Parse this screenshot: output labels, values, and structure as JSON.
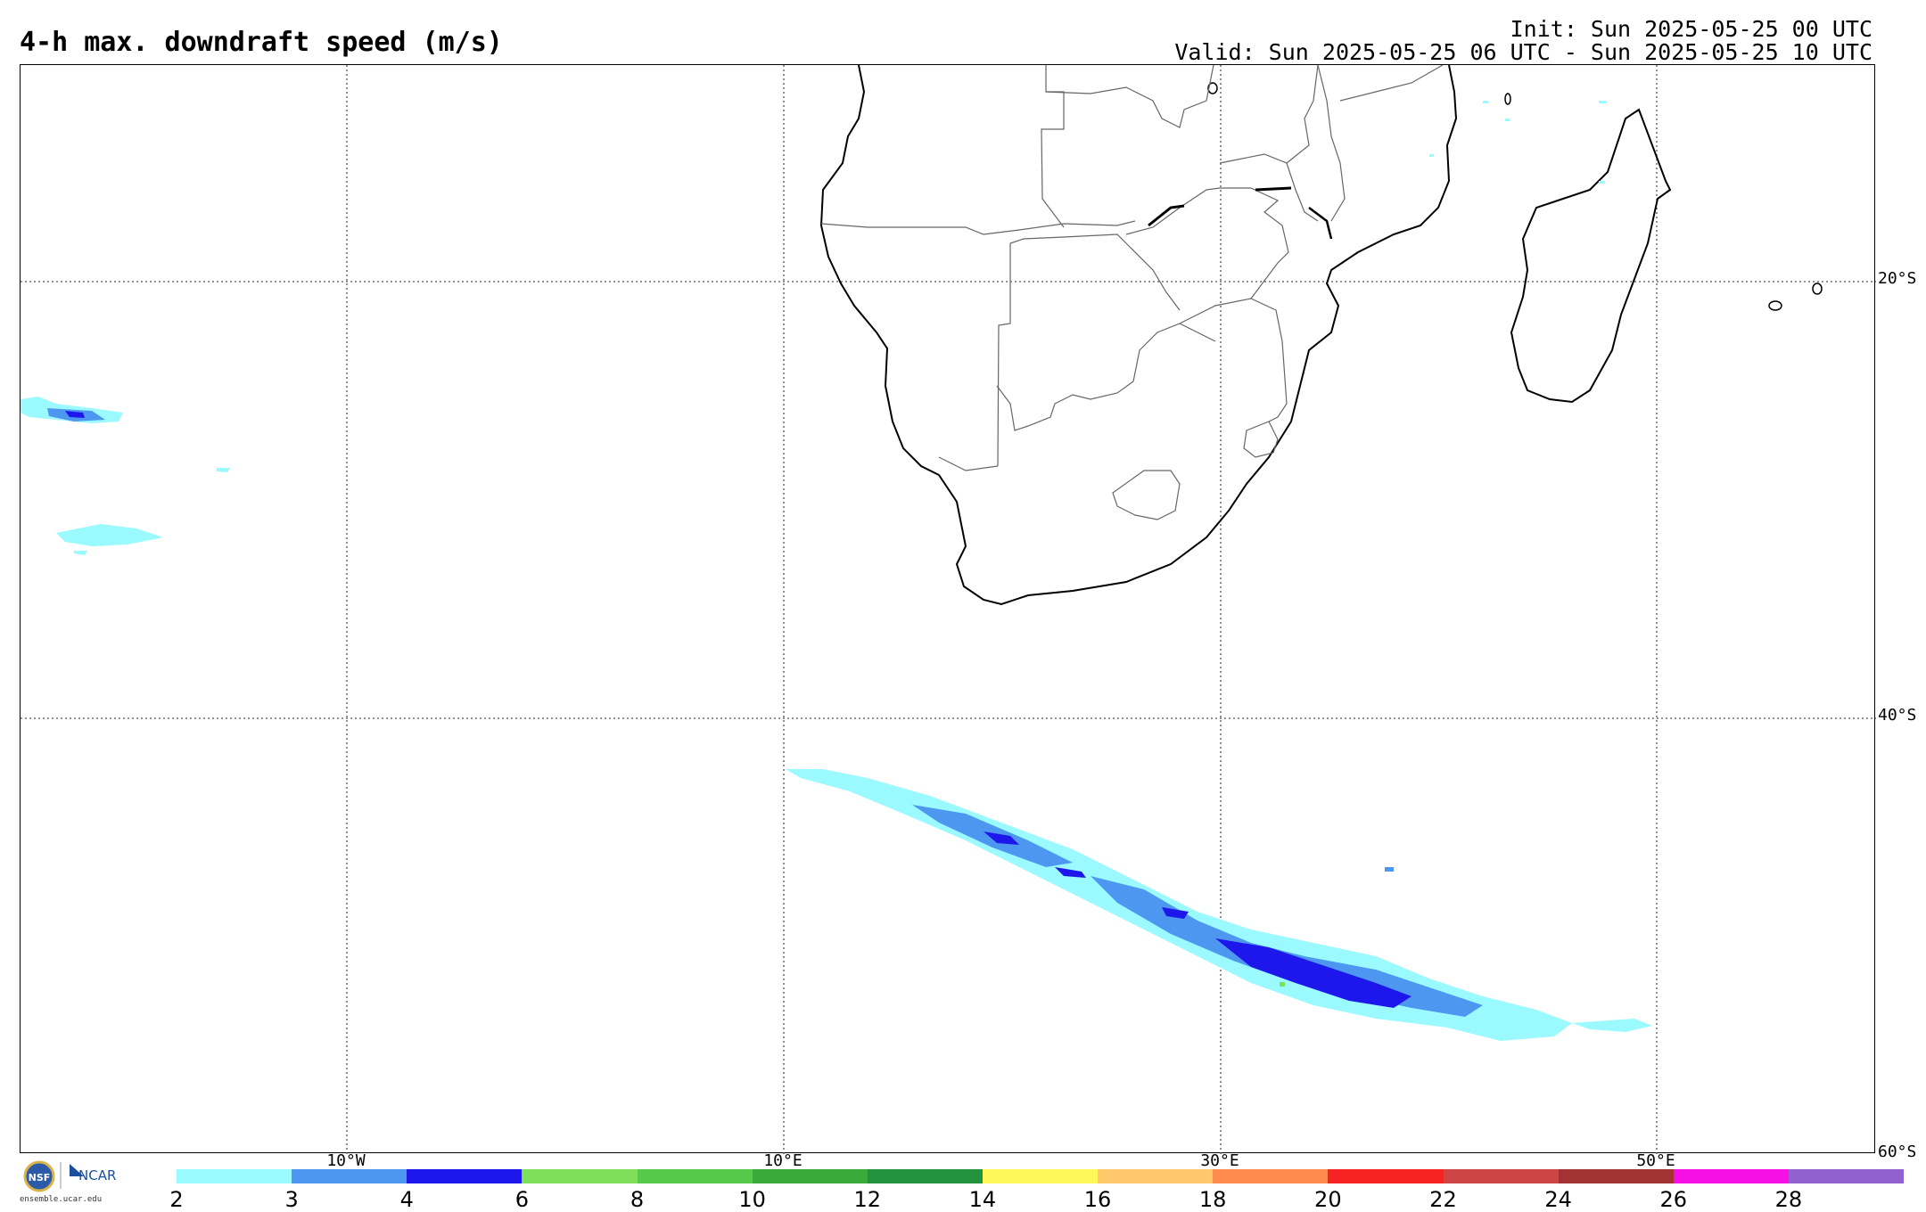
{
  "title": "4-h max. downdraft speed (m/s)",
  "init_line": "Init: Sun 2025-05-25 00 UTC",
  "valid_line": "Valid: Sun 2025-05-25 06 UTC - Sun 2025-05-25 10 UTC",
  "lat_labels": [
    "20°S",
    "40°S",
    "60°S"
  ],
  "lon_labels": [
    "10°W",
    "10°E",
    "30°E",
    "50°E"
  ],
  "logo": {
    "org1": "NSF",
    "org2": "NCAR",
    "url": "ensemble.ucar.edu"
  },
  "colorbar": {
    "ticks": [
      "2",
      "3",
      "4",
      "6",
      "8",
      "10",
      "12",
      "14",
      "16",
      "18",
      "20",
      "22",
      "24",
      "26",
      "28"
    ],
    "colors": [
      "#9bfaff",
      "#4d97f0",
      "#1e17eb",
      "#7ee05a",
      "#56c94a",
      "#3aab3a",
      "#249340",
      "#fff75a",
      "#ffc96b",
      "#ff8b4f",
      "#f52321",
      "#cd4545",
      "#a33333",
      "#f510e8",
      "#9161cf"
    ]
  }
}
